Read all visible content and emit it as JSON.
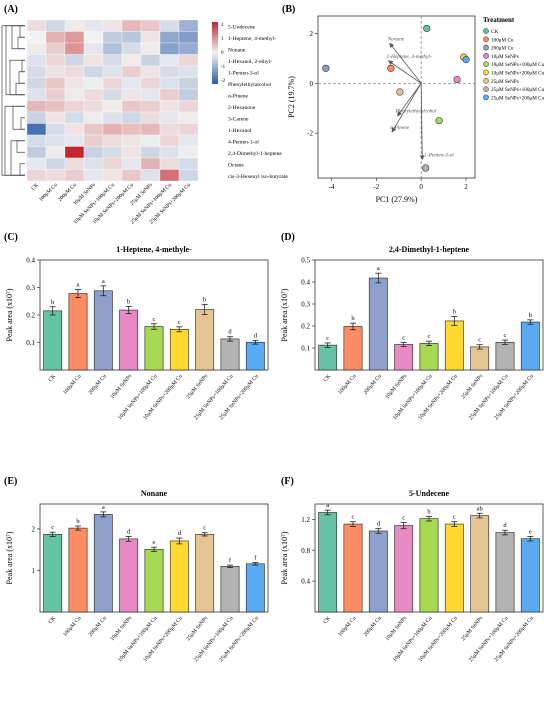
{
  "treatments": [
    "CK",
    "100μM Cu",
    "200μM Cu",
    "10μM SeNPs",
    "10μM SeNPs+100μM Cu",
    "10μM SeNPs+200μM Cu",
    "25μM SeNPs",
    "25μM SeNPs+100μM Cu",
    "25μM SeNPs+200μM Cu"
  ],
  "treatment_colors": [
    "#66c2a5",
    "#fc8d62",
    "#8da0cb",
    "#e78ac3",
    "#a6d854",
    "#ffd92f",
    "#e5c494",
    "#b3b3b3",
    "#5aa9f5"
  ],
  "heatmap": {
    "panel_label": "(A)",
    "compounds": [
      "5-Undecene",
      "1-Heptene, 4-methyl-",
      "Nonane",
      "1-Hexanol, 2-ethyl-",
      "1-Penten-3-ol",
      "Phenylethylalcohol",
      "α-Pinene",
      "2-Hexanone",
      "3-Carene",
      "1-Hexanol",
      "4-Penten-1-ol",
      "2,4-Dimethyl-1-heptene",
      "Octane",
      "cis-3-Hexenyl iso-butyrate"
    ],
    "values": [
      [
        0.3,
        -0.5,
        0.1,
        -0.2,
        0.2,
        0.8,
        0.6,
        -0.4,
        -1.2
      ],
      [
        0.0,
        0.9,
        1.2,
        0.0,
        -0.7,
        -0.8,
        0.2,
        -1.4,
        -1.6
      ],
      [
        0.1,
        0.5,
        1.3,
        -0.2,
        -0.9,
        -0.4,
        0.1,
        -1.5,
        -1.3
      ],
      [
        -0.3,
        0.4,
        -0.5,
        0.2,
        -0.4,
        0.1,
        -0.6,
        -0.2,
        0.4
      ],
      [
        -0.4,
        0.2,
        0.3,
        -0.5,
        -0.3,
        0.5,
        0.2,
        -0.4,
        -0.3
      ],
      [
        -0.5,
        0.6,
        0.2,
        -0.1,
        0.4,
        -0.2,
        0.4,
        -0.3,
        -0.6
      ],
      [
        -0.3,
        0.5,
        0.1,
        0.3,
        -0.4,
        0.2,
        -0.2,
        0.5,
        -0.7
      ],
      [
        0.8,
        0.7,
        0.4,
        0.3,
        0.1,
        0.6,
        0.5,
        0.2,
        0.4
      ],
      [
        -0.6,
        0.2,
        -0.4,
        0.1,
        -0.3,
        -0.5,
        0.3,
        -0.2,
        0.1
      ],
      [
        -2.4,
        -0.4,
        0.2,
        0.6,
        0.9,
        0.7,
        0.8,
        0.3,
        0.4
      ],
      [
        -0.4,
        -0.3,
        -0.2,
        0.5,
        0.3,
        0.2,
        -0.1,
        0.4,
        -0.2
      ],
      [
        -0.7,
        0.1,
        2.8,
        -0.6,
        -0.4,
        0.2,
        -0.5,
        -0.3,
        -0.1
      ],
      [
        -0.2,
        -0.5,
        0.3,
        -0.3,
        0.4,
        -0.2,
        0.9,
        0.3,
        -0.4
      ],
      [
        0.4,
        0.3,
        0.5,
        -0.2,
        0.2,
        0.6,
        -0.3,
        1.8,
        -0.5
      ]
    ],
    "legend_ticks": [
      "2",
      "1",
      "0",
      "-1",
      "-2"
    ],
    "color_low": "#2c5ba8",
    "color_mid": "#f2f2f2",
    "color_high": "#c2272d"
  },
  "pca": {
    "panel_label": "(B)",
    "xlabel": "PC1 (27.9%)",
    "ylabel": "PC2 (19.7%)",
    "xticks": [
      "-4",
      "-2",
      "0",
      "2"
    ],
    "yticks": [
      "2",
      "0",
      "-2"
    ],
    "legend_title": "Treatment",
    "points": [
      {
        "x": 0.25,
        "y": 2.2
      },
      {
        "x": -1.35,
        "y": 0.6
      },
      {
        "x": -4.25,
        "y": 0.6
      },
      {
        "x": 1.6,
        "y": 0.15
      },
      {
        "x": 0.8,
        "y": -1.5
      },
      {
        "x": 1.9,
        "y": 1.05
      },
      {
        "x": -0.95,
        "y": -0.35
      },
      {
        "x": 0.2,
        "y": -3.4
      },
      {
        "x": 2.0,
        "y": 0.95
      }
    ],
    "loadings": [
      {
        "label": "Nonane",
        "x": -1.4,
        "y": 1.6
      },
      {
        "label": "1-Heptene, 4-methyl-",
        "x": -1.45,
        "y": 0.9
      },
      {
        "label": "Phenylethylalcohol",
        "x": -1.05,
        "y": -1.3
      },
      {
        "label": "α-Pinene",
        "x": -1.3,
        "y": -1.95
      },
      {
        "label": "1-Penten-3-ol",
        "x": 0.05,
        "y": -3.05
      }
    ]
  },
  "chart_data": [
    {
      "type": "bar",
      "panel_label": "(C)",
      "title": "1-Heptene, 4-methyle-",
      "ylabel": "Peak area (x10⁷)",
      "ylim": [
        0,
        0.4
      ],
      "yticks": [
        0.1,
        0.2,
        0.3,
        0.4
      ],
      "tick_decimals": 1,
      "values": [
        0.215,
        0.278,
        0.288,
        0.218,
        0.158,
        0.148,
        0.22,
        0.113,
        0.101
      ],
      "errors": [
        0.015,
        0.015,
        0.018,
        0.013,
        0.01,
        0.009,
        0.018,
        0.008,
        0.007
      ],
      "letters": [
        "b",
        "a",
        "a",
        "b",
        "c",
        "c",
        "b",
        "d",
        "d"
      ]
    },
    {
      "type": "bar",
      "panel_label": "(D)",
      "title": "2,4-Dimethyl-1-heptene",
      "ylabel": "Peak area (x10⁷)",
      "ylim": [
        0,
        0.5
      ],
      "yticks": [
        0.1,
        0.2,
        0.3,
        0.4,
        0.5
      ],
      "tick_decimals": 1,
      "values": [
        0.113,
        0.198,
        0.418,
        0.116,
        0.121,
        0.223,
        0.105,
        0.126,
        0.218
      ],
      "errors": [
        0.01,
        0.015,
        0.022,
        0.009,
        0.01,
        0.02,
        0.01,
        0.01,
        0.01
      ],
      "letters": [
        "c",
        "b",
        "a",
        "c",
        "c",
        "b",
        "c",
        "c",
        "b"
      ]
    },
    {
      "type": "bar",
      "panel_label": "(E)",
      "title": "Nonane",
      "ylabel": "Peak area (x10⁷)",
      "ylim": [
        0,
        2.6
      ],
      "yticks": [
        1,
        2
      ],
      "tick_decimals": 0,
      "values": [
        1.87,
        2.02,
        2.35,
        1.76,
        1.51,
        1.71,
        1.87,
        1.1,
        1.16
      ],
      "errors": [
        0.05,
        0.05,
        0.06,
        0.06,
        0.05,
        0.07,
        0.04,
        0.03,
        0.03
      ],
      "letters": [
        "c",
        "b",
        "a",
        "d",
        "e",
        "d",
        "c",
        "f",
        "f"
      ]
    },
    {
      "type": "bar",
      "panel_label": "(F)",
      "title": "5-Undecene",
      "ylabel": "Peak area (x10⁷)",
      "ylim": [
        0,
        1.4
      ],
      "yticks": [
        0.4,
        0.8,
        1.2
      ],
      "tick_decimals": 1,
      "values": [
        1.29,
        1.14,
        1.05,
        1.12,
        1.21,
        1.14,
        1.25,
        1.03,
        0.95
      ],
      "errors": [
        0.03,
        0.03,
        0.03,
        0.04,
        0.03,
        0.03,
        0.03,
        0.03,
        0.03
      ],
      "letters": [
        "a",
        "c",
        "d",
        "c",
        "b",
        "c",
        "ab",
        "d",
        "e"
      ]
    }
  ]
}
